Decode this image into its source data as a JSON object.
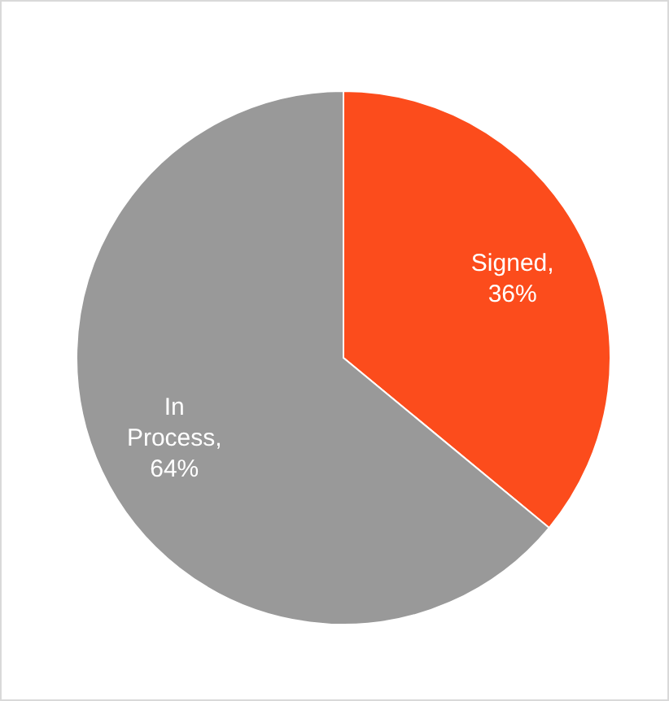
{
  "chart_data": {
    "type": "pie",
    "categories": [
      "Signed",
      "In Process"
    ],
    "values": [
      36,
      64
    ],
    "colors": [
      "#fc4c1c",
      "#999999"
    ],
    "data_labels": true,
    "value_labels": [
      ", 36%",
      ", 64%"
    ]
  }
}
